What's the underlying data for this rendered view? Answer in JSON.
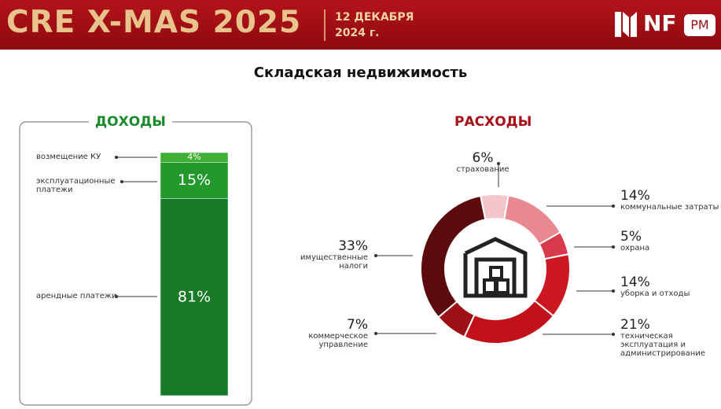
{
  "header": {
    "title": "CRE X-MAS 2025",
    "date_line1": "12 ДЕКАБРЯ",
    "date_line2": "2024 г.",
    "logo": "NF",
    "logo_badge": "PM"
  },
  "subtitle": "Складская недвижимость",
  "chart_data": [
    {
      "type": "stacked-bar",
      "title": "ДОХОДЫ",
      "categories": [
        "возмещение КУ",
        "эксплуатационные платежи",
        "арендные платежи"
      ],
      "values": [
        4,
        15,
        81
      ],
      "value_labels": [
        "4%",
        "15%",
        "81%"
      ],
      "colors": [
        "#3fae35",
        "#23982c",
        "#177a27"
      ]
    },
    {
      "type": "donut",
      "title": "РАСХОДЫ",
      "categories": [
        "страхование",
        "коммунальные затраты",
        "охрана",
        "уборка и отходы",
        "техническая эксплуатация и администрирование",
        "коммерческое управление",
        "имущественные налоги"
      ],
      "values": [
        6,
        14,
        5,
        14,
        21,
        7,
        33
      ],
      "value_labels": [
        "6%",
        "14%",
        "5%",
        "14%",
        "21%",
        "7%",
        "33%"
      ],
      "colors": [
        "#f2c6ca",
        "#e88891",
        "#d83a4c",
        "#cc1820",
        "#c3111b",
        "#9c1016",
        "#5c0a0d"
      ]
    }
  ]
}
